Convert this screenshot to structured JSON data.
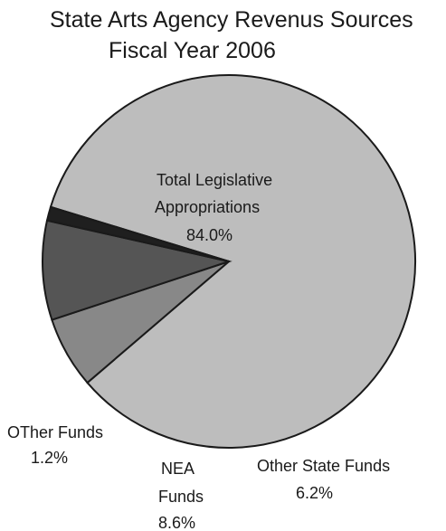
{
  "chart_data": {
    "type": "pie",
    "title": [
      "State Arts Agency Revenus Sources",
      "Fiscal Year 2006"
    ],
    "slices": [
      {
        "label": [
          "Total Legislative",
          "Appropriations"
        ],
        "value": 84.0,
        "value_label": "84.0%",
        "color": "#bdbdbd"
      },
      {
        "label": [
          "Other State Funds"
        ],
        "value": 6.2,
        "value_label": "6.2%",
        "color": "#888888"
      },
      {
        "label": [
          "NEA",
          "Funds"
        ],
        "value": 8.6,
        "value_label": "8.6%",
        "color": "#555555"
      },
      {
        "label": [
          "OTher Funds"
        ],
        "value": 1.2,
        "value_label": "1.2%",
        "color": "#1f1f1f"
      }
    ],
    "start_angle_deg": -163,
    "direction": "clockwise",
    "legend": "none"
  }
}
